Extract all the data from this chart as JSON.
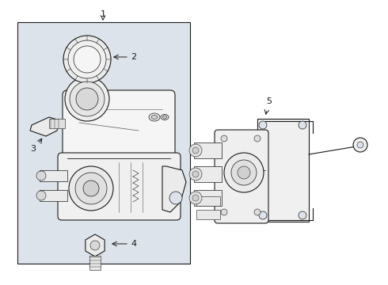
{
  "bg_white": "#ffffff",
  "bg_box": "#dde4ea",
  "line_color": "#1a1a1a",
  "line_light": "#555555",
  "fill_white": "#ffffff",
  "fill_light": "#f0f0f0",
  "fill_mid": "#e0e0e0",
  "fill_dark": "#c8c8c8",
  "label_color": "#111111"
}
